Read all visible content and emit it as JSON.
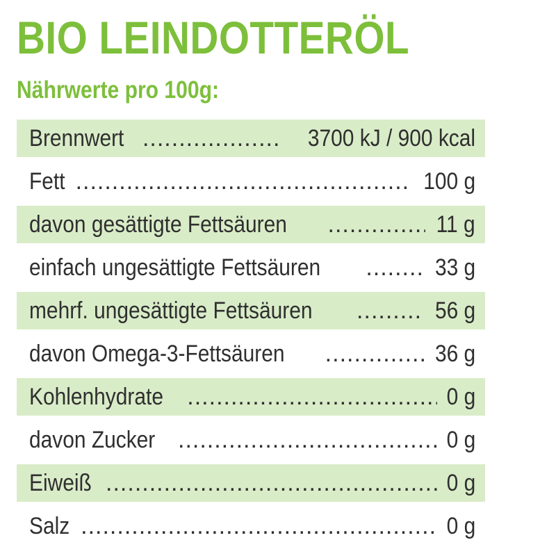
{
  "title": "BIO LEINDOTTERÖL",
  "subtitle": "Nährwerte pro 100g:",
  "colors": {
    "accent": "#7dbf3b",
    "row_shade": "#d9ecc8",
    "text": "#2f2f2f"
  },
  "rows": [
    {
      "label": "Brennwert",
      "value": "3700 kJ / 900 kcal"
    },
    {
      "label": "Fett",
      "value": "100 g"
    },
    {
      "label": "davon gesättigte Fettsäuren",
      "value": "11 g"
    },
    {
      "label": "einfach ungesättigte Fettsäuren",
      "value": "33 g"
    },
    {
      "label": "mehrf. ungesättigte Fettsäuren",
      "value": "56 g"
    },
    {
      "label": "davon Omega-3-Fettsäuren",
      "value": "36 g"
    },
    {
      "label": "Kohlenhydrate",
      "value": "0 g"
    },
    {
      "label": "davon Zucker",
      "value": "0 g"
    },
    {
      "label": "Eiweiß",
      "value": "0 g"
    },
    {
      "label": "Salz",
      "value": "0 g"
    }
  ]
}
